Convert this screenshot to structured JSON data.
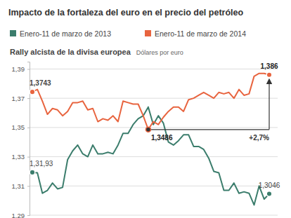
{
  "chart_data": {
    "type": "line",
    "title": "Impacto de la fortaleza del euro en el precio del petróleo",
    "subtitle": "Rally alcista de la divisa europea",
    "ylabel": "Dólares por euro",
    "ylim": [
      1.29,
      1.395
    ],
    "yticks": [
      {
        "value": 1.29,
        "label": "1,29"
      },
      {
        "value": 1.31,
        "label": "1,31"
      },
      {
        "value": 1.33,
        "label": "1,33"
      },
      {
        "value": 1.35,
        "label": "1,35"
      },
      {
        "value": 1.37,
        "label": "1,37"
      },
      {
        "value": 1.39,
        "label": "1,39"
      }
    ],
    "grid": true,
    "tick_labels": "y",
    "series": [
      {
        "name": "Enero-11 de marzo de 2013",
        "color": "#3b7d6c",
        "values": [
          1.3193,
          1.319,
          1.305,
          1.307,
          1.312,
          1.308,
          1.309,
          1.328,
          1.334,
          1.338,
          1.332,
          1.33,
          1.338,
          1.332,
          1.332,
          1.333,
          1.332,
          1.338,
          1.346,
          1.346,
          1.352,
          1.356,
          1.358,
          1.364,
          1.352,
          1.358,
          1.353,
          1.34,
          1.338,
          1.341,
          1.345,
          1.345,
          1.337,
          1.337,
          1.335,
          1.329,
          1.32,
          1.319,
          1.307,
          1.307,
          1.312,
          1.305,
          1.306,
          1.305,
          1.297,
          1.31,
          1.301,
          1.3046
        ]
      },
      {
        "name": "Enero-11 de marzo de 2014",
        "color": "#e8643f",
        "values": [
          1.3743,
          1.376,
          1.368,
          1.359,
          1.363,
          1.362,
          1.358,
          1.361,
          1.367,
          1.367,
          1.368,
          1.362,
          1.363,
          1.354,
          1.356,
          1.355,
          1.358,
          1.354,
          1.368,
          1.367,
          1.366,
          1.366,
          1.358,
          1.3486,
          1.354,
          1.352,
          1.357,
          1.361,
          1.364,
          1.364,
          1.361,
          1.369,
          1.37,
          1.372,
          1.374,
          1.372,
          1.37,
          1.374,
          1.373,
          1.374,
          1.37,
          1.376,
          1.372,
          1.373,
          1.385,
          1.387,
          1.387,
          1.386
        ]
      }
    ],
    "annotations": [
      {
        "text": "1,3743",
        "series": 1,
        "index": 0
      },
      {
        "text": "1,31,93",
        "series": 0,
        "index": 0
      },
      {
        "text": "1,3486",
        "series": 1,
        "index": 23
      },
      {
        "text": "1,386",
        "series": 1,
        "index": 47
      },
      {
        "text": "1,3046",
        "series": 0,
        "index": 47
      }
    ],
    "change": {
      "text": "+2,7%",
      "series": 1,
      "from_index": 23,
      "to_index": 47
    }
  }
}
